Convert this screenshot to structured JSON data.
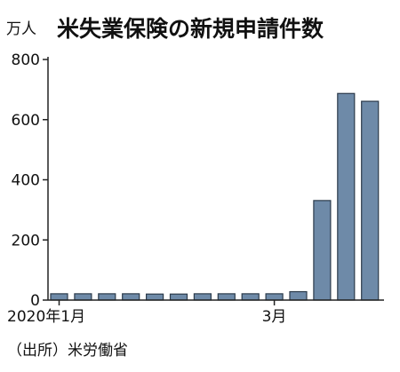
{
  "chart_data": {
    "type": "bar",
    "title": "米失業保険の新規申請件数",
    "ylabel": "万人",
    "xlabel": "",
    "ylim": [
      0,
      800
    ],
    "yticks": [
      0,
      200,
      400,
      600,
      800
    ],
    "x_tick_labels": [
      {
        "label": "2020年1月",
        "index": 0
      },
      {
        "label": "3月",
        "index": 9
      }
    ],
    "values": [
      21,
      21,
      21,
      21,
      20,
      20,
      21,
      21,
      21,
      21,
      28,
      331,
      687,
      661
    ],
    "source": "（出所）米労働省",
    "grid": false,
    "legend": "none",
    "colors": {
      "bar": "#6e8aa8",
      "bar_edge": "#2b3a4a",
      "axis": "#222222"
    }
  }
}
